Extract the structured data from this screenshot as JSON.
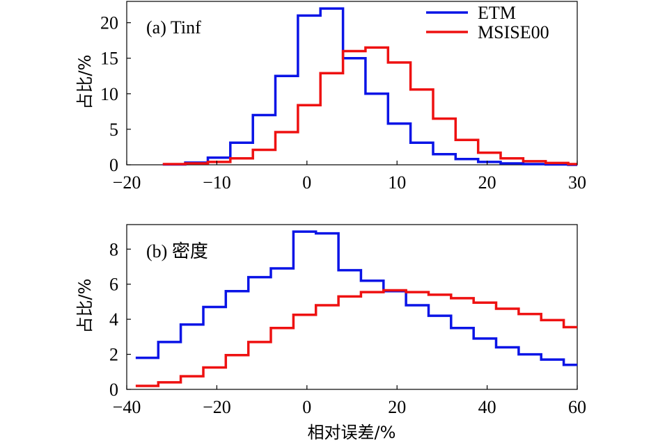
{
  "chart_data": [
    {
      "type": "line",
      "title": "",
      "panel_label": "(a) Tinf",
      "xlabel": "",
      "ylabel": "占比/%",
      "xlim": [
        -20,
        30
      ],
      "ylim": [
        0,
        23
      ],
      "xticks": [
        -20,
        -10,
        0,
        10,
        20,
        30
      ],
      "xtick_labels": [
        "−20",
        "−10",
        "0",
        "10",
        "20",
        "30"
      ],
      "yticks": [
        0,
        5,
        10,
        15,
        20
      ],
      "ytick_labels": [
        "0",
        "5",
        "10",
        "15",
        "20"
      ],
      "legend": {
        "position": "top-right",
        "entries": [
          "ETM",
          "MSISE00"
        ]
      },
      "series": [
        {
          "name": "ETM",
          "color": "#0a14e6",
          "bin_edges": [
            -16,
            -13.5,
            -11,
            -8.5,
            -6,
            -3.5,
            -1,
            1.5,
            4,
            6.5,
            9,
            11.5,
            14,
            16.5,
            19,
            21.5,
            24,
            26.5,
            29,
            30
          ],
          "values": [
            0.05,
            0.3,
            1.0,
            3.1,
            7.0,
            12.5,
            21.0,
            22.0,
            15.0,
            10.0,
            5.8,
            3.1,
            1.5,
            0.8,
            0.4,
            0.2,
            0.1,
            0.05,
            0.0
          ]
        },
        {
          "name": "MSISE00",
          "color": "#ee1111",
          "bin_edges": [
            -16,
            -13.5,
            -11,
            -8.5,
            -6,
            -3.5,
            -1,
            1.5,
            4,
            6.5,
            9,
            11.5,
            14,
            16.5,
            19,
            21.5,
            24,
            26.5,
            29,
            30
          ],
          "values": [
            0.1,
            0.2,
            0.4,
            0.9,
            2.1,
            4.6,
            8.4,
            12.9,
            16.0,
            16.5,
            14.4,
            10.6,
            6.5,
            3.5,
            1.7,
            0.9,
            0.5,
            0.25,
            0.1
          ]
        }
      ]
    },
    {
      "type": "line",
      "title": "",
      "panel_label": "(b) 密度",
      "xlabel": "相对误差/%",
      "ylabel": "占比/%",
      "xlim": [
        -40,
        60
      ],
      "ylim": [
        0,
        9.4
      ],
      "xticks": [
        -40,
        -20,
        0,
        20,
        40,
        60
      ],
      "xtick_labels": [
        "−40",
        "−20",
        "0",
        "20",
        "40",
        "60"
      ],
      "yticks": [
        0,
        2,
        4,
        6,
        8
      ],
      "ytick_labels": [
        "0",
        "2",
        "4",
        "6",
        "8"
      ],
      "series": [
        {
          "name": "ETM",
          "color": "#0a14e6",
          "bin_edges": [
            -38,
            -33,
            -28,
            -23,
            -18,
            -13,
            -8,
            -3,
            2,
            7,
            12,
            17,
            22,
            27,
            32,
            37,
            42,
            47,
            52,
            57,
            60
          ],
          "values": [
            1.8,
            2.7,
            3.7,
            4.7,
            5.6,
            6.4,
            6.9,
            9.0,
            8.9,
            6.8,
            6.2,
            5.6,
            4.8,
            4.2,
            3.5,
            2.9,
            2.4,
            2.0,
            1.7,
            1.4
          ]
        },
        {
          "name": "MSISE00",
          "color": "#ee1111",
          "bin_edges": [
            -38,
            -33,
            -28,
            -23,
            -18,
            -13,
            -8,
            -3,
            2,
            7,
            12,
            17,
            22,
            27,
            32,
            37,
            42,
            47,
            52,
            57,
            60
          ],
          "values": [
            0.2,
            0.4,
            0.75,
            1.25,
            1.95,
            2.7,
            3.5,
            4.25,
            4.8,
            5.3,
            5.55,
            5.65,
            5.55,
            5.4,
            5.2,
            4.95,
            4.6,
            4.3,
            3.95,
            3.55
          ]
        }
      ]
    }
  ]
}
